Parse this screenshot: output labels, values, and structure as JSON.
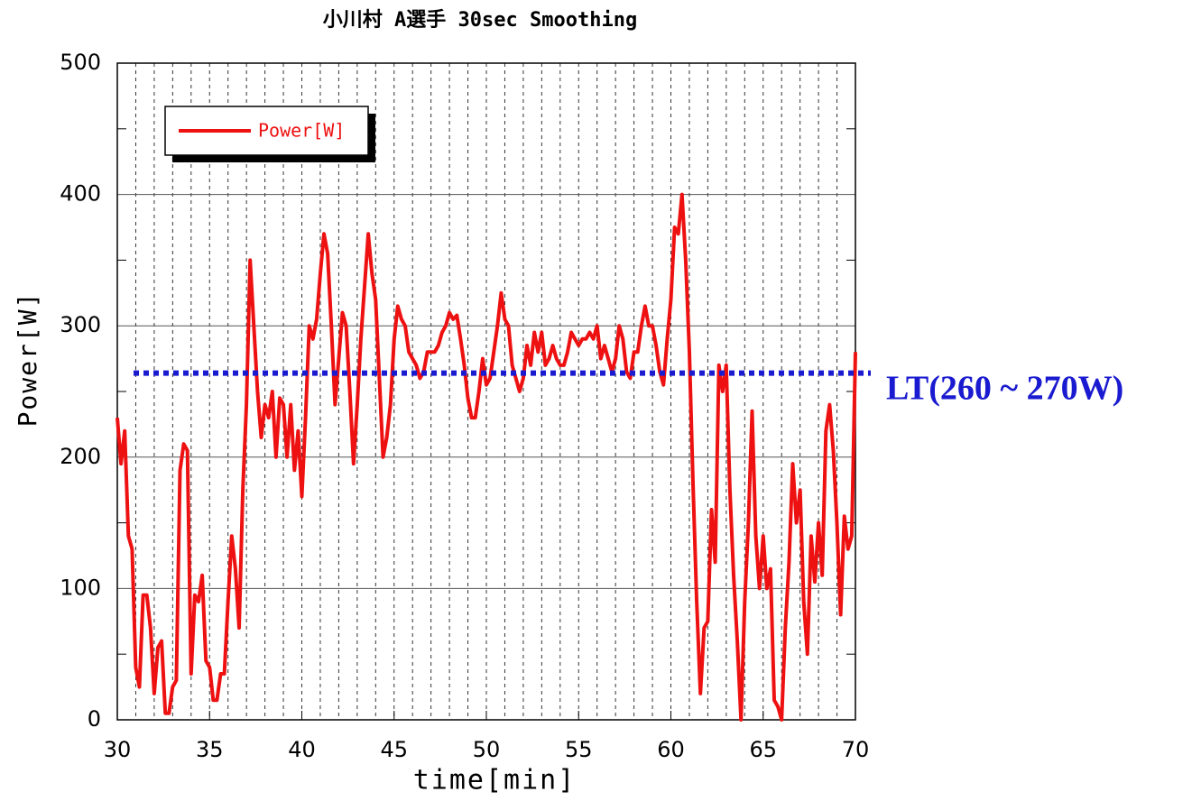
{
  "chart_data": {
    "type": "line",
    "title": "小川村 A選手 30sec Smoothing",
    "x_label": "time[min]",
    "y_label": "Power[W]",
    "x": [
      30,
      30.2,
      30.4,
      30.6,
      30.8,
      31,
      31.2,
      31.4,
      31.6,
      31.8,
      32,
      32.2,
      32.4,
      32.6,
      32.8,
      33,
      33.2,
      33.4,
      33.6,
      33.8,
      34,
      34.2,
      34.4,
      34.6,
      34.8,
      35,
      35.2,
      35.4,
      35.6,
      35.8,
      36,
      36.2,
      36.4,
      36.6,
      36.8,
      37,
      37.2,
      37.4,
      37.6,
      37.8,
      38,
      38.2,
      38.4,
      38.6,
      38.8,
      39,
      39.2,
      39.4,
      39.6,
      39.8,
      40,
      40.2,
      40.4,
      40.6,
      40.8,
      41,
      41.2,
      41.4,
      41.6,
      41.8,
      42,
      42.2,
      42.4,
      42.6,
      42.8,
      43,
      43.2,
      43.4,
      43.6,
      43.8,
      44,
      44.2,
      44.4,
      44.6,
      44.8,
      45,
      45.2,
      45.4,
      45.6,
      45.8,
      46,
      46.2,
      46.4,
      46.6,
      46.8,
      47,
      47.2,
      47.4,
      47.6,
      47.8,
      48,
      48.2,
      48.4,
      48.6,
      48.8,
      49,
      49.2,
      49.4,
      49.6,
      49.8,
      50,
      50.2,
      50.4,
      50.6,
      50.8,
      51,
      51.2,
      51.4,
      51.6,
      51.8,
      52,
      52.2,
      52.4,
      52.6,
      52.8,
      53,
      53.2,
      53.4,
      53.6,
      53.8,
      54,
      54.2,
      54.4,
      54.6,
      54.8,
      55,
      55.2,
      55.4,
      55.6,
      55.8,
      56,
      56.2,
      56.4,
      56.6,
      56.8,
      57,
      57.2,
      57.4,
      57.6,
      57.8,
      58,
      58.2,
      58.4,
      58.6,
      58.8,
      59,
      59.2,
      59.4,
      59.6,
      59.8,
      60,
      60.2,
      60.4,
      60.6,
      60.8,
      61,
      61.2,
      61.4,
      61.6,
      61.8,
      62,
      62.2,
      62.4,
      62.6,
      62.8,
      63,
      63.2,
      63.4,
      63.6,
      63.8,
      64,
      64.2,
      64.4,
      64.6,
      64.8,
      65,
      65.2,
      65.4,
      65.6,
      65.8,
      66,
      66.2,
      66.4,
      66.6,
      66.8,
      67,
      67.2,
      67.4,
      67.6,
      67.8,
      68,
      68.2,
      68.4,
      68.6,
      68.8,
      69,
      69.2,
      69.4,
      69.6,
      69.8,
      70
    ],
    "series": [
      {
        "name": "Power[W]",
        "color": "#ee1111",
        "values": [
          230,
          195,
          220,
          140,
          130,
          40,
          25,
          95,
          95,
          70,
          20,
          55,
          60,
          5,
          5,
          25,
          30,
          190,
          210,
          205,
          35,
          95,
          90,
          110,
          45,
          40,
          15,
          15,
          35,
          35,
          90,
          140,
          115,
          70,
          175,
          240,
          350,
          300,
          250,
          215,
          240,
          230,
          250,
          200,
          245,
          240,
          200,
          240,
          190,
          220,
          170,
          230,
          300,
          290,
          305,
          340,
          370,
          355,
          300,
          240,
          275,
          310,
          300,
          250,
          195,
          240,
          290,
          330,
          370,
          340,
          320,
          260,
          200,
          215,
          240,
          290,
          315,
          305,
          300,
          280,
          275,
          270,
          260,
          265,
          280,
          280,
          280,
          285,
          295,
          300,
          310,
          305,
          308,
          290,
          270,
          245,
          230,
          230,
          250,
          275,
          255,
          260,
          280,
          300,
          325,
          305,
          300,
          270,
          260,
          250,
          260,
          285,
          270,
          295,
          280,
          295,
          270,
          275,
          285,
          275,
          270,
          270,
          280,
          295,
          290,
          285,
          290,
          290,
          295,
          290,
          300,
          275,
          285,
          275,
          265,
          275,
          300,
          290,
          265,
          260,
          280,
          280,
          300,
          315,
          300,
          300,
          285,
          265,
          255,
          290,
          320,
          375,
          370,
          400,
          350,
          280,
          180,
          90,
          20,
          70,
          75,
          160,
          120,
          270,
          250,
          270,
          175,
          110,
          60,
          0,
          90,
          150,
          235,
          140,
          100,
          140,
          100,
          115,
          15,
          10,
          0,
          70,
          120,
          195,
          150,
          175,
          90,
          50,
          140,
          105,
          150,
          110,
          220,
          240,
          205,
          150,
          80,
          155,
          130,
          140,
          280
        ]
      }
    ],
    "reference_lines": [
      {
        "value": 264,
        "label": "LT(260 ~ 270W)",
        "color": "#1a1ad0"
      }
    ],
    "xlim": [
      30,
      70
    ],
    "ylim": [
      0,
      500
    ],
    "xticks": [
      30,
      35,
      40,
      45,
      50,
      55,
      60,
      65,
      70
    ],
    "yticks": [
      0,
      100,
      200,
      300,
      400,
      500
    ],
    "xminorticks": [
      31,
      32,
      33,
      34,
      35,
      36,
      37,
      38,
      39,
      40,
      41,
      42,
      43,
      44,
      45,
      46,
      47,
      48,
      49,
      50,
      51,
      52,
      53,
      54,
      55,
      56,
      57,
      58,
      59,
      60,
      61,
      62,
      63,
      64,
      65,
      66,
      67,
      68,
      69
    ],
    "yminorticks": [
      50,
      150,
      250,
      350,
      450
    ],
    "grid": true,
    "legend": "upper left"
  }
}
